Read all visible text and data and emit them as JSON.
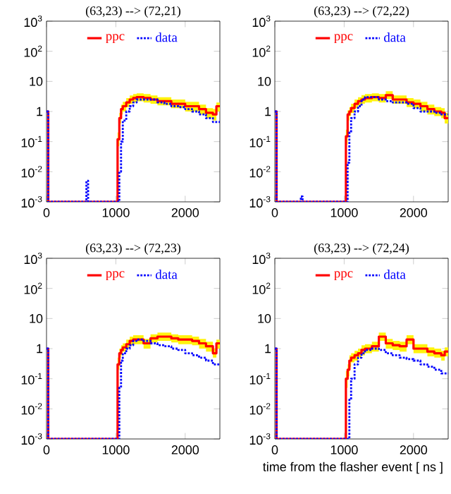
{
  "chart_data": [
    {
      "type": "step",
      "title": "(63,23) --> (72,21)",
      "log": true,
      "legend": "top",
      "xlim": [
        0,
        2500
      ],
      "xticks": [
        0,
        1000,
        2000
      ],
      "ylim": [
        0.001,
        1000
      ],
      "yticks": [
        {
          "value": 1000,
          "label": "10$^{3}$"
        },
        {
          "value": 100,
          "label": "10$^{2}$"
        },
        {
          "value": 10,
          "label": "10"
        },
        {
          "value": 1,
          "label": "1"
        },
        {
          "value": 0.1,
          "label": "10$^{-1}$"
        },
        {
          "value": 0.01,
          "label": "10$^{-2}$"
        },
        {
          "value": 0.001,
          "label": "10$^{-3}$"
        }
      ],
      "series": [
        {
          "name": "ppc",
          "color": "#ff0000",
          "line_style": "solid",
          "x": [
            0,
            25,
            1000,
            1025,
            1050,
            1075,
            1100,
            1150,
            1200,
            1250,
            1300,
            1400,
            1500,
            1600,
            1700,
            1800,
            1900,
            2000,
            2100,
            2200,
            2300,
            2400,
            2450,
            2500
          ],
          "values": [
            1,
            0.001,
            0.001,
            0.12,
            0.6,
            1.2,
            1.5,
            2,
            2.5,
            2.8,
            3,
            2.8,
            2.5,
            2.2,
            2.2,
            1.8,
            1.8,
            1.5,
            1.5,
            1.2,
            0.9,
            0.8,
            1.5,
            1.5
          ],
          "upper": [
            null,
            null,
            null,
            0.2,
            0.9,
            1.7,
            2.1,
            2.8,
            3.4,
            3.8,
            4,
            3.8,
            3.4,
            3,
            3,
            2.5,
            2.5,
            2.1,
            2.1,
            1.7,
            1.3,
            1.2,
            2,
            2
          ],
          "lower": [
            null,
            null,
            null,
            0.07,
            0.4,
            0.8,
            1,
            1.4,
            1.8,
            2,
            2.2,
            2,
            1.8,
            1.6,
            1.6,
            1.3,
            1.3,
            1,
            1,
            0.8,
            0.6,
            0.5,
            1,
            1
          ]
        },
        {
          "name": "data",
          "color": "#0000ff",
          "line_style": "dotted",
          "x": [
            0,
            25,
            550,
            575,
            600,
            1025,
            1050,
            1075,
            1100,
            1150,
            1200,
            1250,
            1300,
            1400,
            1500,
            1600,
            1700,
            1800,
            1900,
            2000,
            2100,
            2200,
            2300,
            2400,
            2500
          ],
          "values": [
            1,
            0.001,
            0.001,
            0.005,
            0.001,
            0.001,
            0.01,
            0.1,
            0.5,
            1,
            1.5,
            2,
            2.5,
            2.5,
            2.5,
            2,
            1.8,
            1.5,
            1.4,
            1.2,
            1,
            0.8,
            0.6,
            0.45,
            0.5
          ]
        }
      ]
    },
    {
      "type": "step",
      "title": "(63,23) --> (72,22)",
      "log": true,
      "legend": "top",
      "xlim": [
        0,
        2500
      ],
      "xticks": [
        0,
        1000,
        2000
      ],
      "ylim": [
        0.001,
        1000
      ],
      "yticks": [
        {
          "value": 1000,
          "label": "10$^{3}$"
        },
        {
          "value": 100,
          "label": "10$^{2}$"
        },
        {
          "value": 10,
          "label": "10"
        },
        {
          "value": 1,
          "label": "1"
        },
        {
          "value": 0.1,
          "label": "10$^{-1}$"
        },
        {
          "value": 0.01,
          "label": "10$^{-2}$"
        },
        {
          "value": 0.001,
          "label": "10$^{-3}$"
        }
      ],
      "series": [
        {
          "name": "ppc",
          "color": "#ff0000",
          "line_style": "solid",
          "x": [
            0,
            25,
            1000,
            1025,
            1050,
            1075,
            1100,
            1150,
            1200,
            1250,
            1300,
            1400,
            1500,
            1600,
            1700,
            1800,
            1900,
            2000,
            2100,
            2200,
            2300,
            2400,
            2450,
            2500
          ],
          "values": [
            1,
            0.001,
            0.001,
            0.15,
            0.8,
            1,
            1.3,
            1.8,
            2.2,
            2.5,
            2.8,
            3,
            2.8,
            3.5,
            2.5,
            2.5,
            2,
            1.8,
            1.5,
            1.2,
            1,
            0.9,
            0.6,
            0.6
          ],
          "upper": [
            null,
            null,
            null,
            0.25,
            1.1,
            1.4,
            1.8,
            2.5,
            3,
            3.5,
            3.8,
            4,
            3.8,
            4.7,
            3.4,
            3.4,
            2.8,
            2.5,
            2.1,
            1.7,
            1.4,
            1.3,
            0.9,
            0.9
          ],
          "lower": [
            null,
            null,
            null,
            0.08,
            0.5,
            0.7,
            0.9,
            1.3,
            1.6,
            1.8,
            2,
            2.2,
            2,
            2.6,
            1.8,
            1.8,
            1.4,
            1.3,
            1,
            0.8,
            0.7,
            0.6,
            0.4,
            0.4
          ]
        },
        {
          "name": "data",
          "color": "#0000ff",
          "line_style": "dotted",
          "x": [
            0,
            25,
            350,
            375,
            400,
            1025,
            1050,
            1075,
            1100,
            1150,
            1200,
            1250,
            1300,
            1400,
            1500,
            1600,
            1700,
            1800,
            1900,
            2000,
            2100,
            2200,
            2300,
            2400,
            2500
          ],
          "values": [
            1,
            0.001,
            0.001,
            0.0015,
            0.001,
            0.001,
            0.02,
            0.2,
            0.6,
            1,
            1.5,
            2.5,
            3,
            3,
            2.5,
            2.2,
            2,
            2,
            1.8,
            1.3,
            1,
            1,
            0.9,
            0.8,
            0.8
          ]
        }
      ]
    },
    {
      "type": "step",
      "title": "(63,23) --> (72,23)",
      "log": true,
      "legend": "top",
      "xlim": [
        0,
        2500
      ],
      "xticks": [
        0,
        1000,
        2000
      ],
      "ylim": [
        0.001,
        1000
      ],
      "yticks": [
        {
          "value": 1000,
          "label": "10$^{3}$"
        },
        {
          "value": 100,
          "label": "10$^{2}$"
        },
        {
          "value": 10,
          "label": "10"
        },
        {
          "value": 1,
          "label": "1"
        },
        {
          "value": 0.1,
          "label": "10$^{-1}$"
        },
        {
          "value": 0.01,
          "label": "10$^{-2}$"
        },
        {
          "value": 0.001,
          "label": "10$^{-3}$"
        }
      ],
      "series": [
        {
          "name": "ppc",
          "color": "#ff0000",
          "line_style": "solid",
          "x": [
            0,
            25,
            1000,
            1025,
            1050,
            1075,
            1100,
            1150,
            1200,
            1250,
            1300,
            1400,
            1500,
            1600,
            1700,
            1800,
            1900,
            2000,
            2100,
            2200,
            2300,
            2400,
            2450,
            2500
          ],
          "values": [
            1,
            0.001,
            0.001,
            0.3,
            0.7,
            0.9,
            1.1,
            1.4,
            1.8,
            2,
            2,
            1.5,
            2.2,
            2.5,
            2.5,
            2.2,
            2,
            2,
            1.8,
            1.5,
            1.2,
            0.7,
            1.5,
            1.5
          ],
          "upper": [
            null,
            null,
            null,
            0.5,
            1,
            1.3,
            1.5,
            2,
            2.5,
            2.8,
            2.8,
            2.1,
            3,
            3.4,
            3.4,
            3,
            2.8,
            2.8,
            2.5,
            2.1,
            1.7,
            1,
            2,
            2
          ],
          "lower": [
            null,
            null,
            null,
            0.2,
            0.5,
            0.6,
            0.8,
            1,
            1.3,
            1.4,
            1.4,
            1,
            1.6,
            1.8,
            1.8,
            1.6,
            1.4,
            1.4,
            1.3,
            1,
            0.8,
            0.5,
            1,
            1
          ]
        },
        {
          "name": "data",
          "color": "#0000ff",
          "line_style": "dotted",
          "x": [
            0,
            25,
            1025,
            1050,
            1075,
            1100,
            1150,
            1200,
            1250,
            1300,
            1400,
            1500,
            1600,
            1700,
            1800,
            1900,
            2000,
            2100,
            2200,
            2300,
            2400,
            2500
          ],
          "values": [
            1,
            0.001,
            0.001,
            0.05,
            0.4,
            0.7,
            1,
            1.3,
            1.8,
            2,
            1.8,
            1.5,
            1.3,
            1.2,
            1,
            0.9,
            0.7,
            0.6,
            0.5,
            0.4,
            0.3,
            0.3
          ]
        }
      ]
    },
    {
      "type": "step",
      "title": "(63,23) --> (72,24)",
      "xlabel": "time from the flasher event [ ns ]",
      "log": true,
      "legend": "top",
      "xlim": [
        0,
        2500
      ],
      "xticks": [
        0,
        1000,
        2000
      ],
      "ylim": [
        0.001,
        1000
      ],
      "yticks": [
        {
          "value": 1000,
          "label": "10$^{3}$"
        },
        {
          "value": 100,
          "label": "10$^{2}$"
        },
        {
          "value": 10,
          "label": "10"
        },
        {
          "value": 1,
          "label": "1"
        },
        {
          "value": 0.1,
          "label": "10$^{-1}$"
        },
        {
          "value": 0.01,
          "label": "10$^{-2}$"
        },
        {
          "value": 0.001,
          "label": "10$^{-3}$"
        }
      ],
      "series": [
        {
          "name": "ppc",
          "color": "#ff0000",
          "line_style": "solid",
          "x": [
            0,
            25,
            1000,
            1025,
            1050,
            1075,
            1100,
            1150,
            1200,
            1250,
            1300,
            1400,
            1500,
            1600,
            1700,
            1800,
            1900,
            2000,
            2100,
            2200,
            2300,
            2400,
            2450,
            2500
          ],
          "values": [
            1,
            0.001,
            0.001,
            0.1,
            0.2,
            0.4,
            0.5,
            0.6,
            0.7,
            0.9,
            1,
            1.2,
            2.5,
            1.5,
            1.3,
            1.2,
            2,
            1,
            1,
            0.8,
            0.7,
            0.6,
            0.8,
            0.8
          ],
          "upper": [
            null,
            null,
            null,
            0.18,
            0.3,
            0.6,
            0.7,
            0.85,
            1,
            1.3,
            1.4,
            1.7,
            3.4,
            2.1,
            1.8,
            1.7,
            2.8,
            1.4,
            1.4,
            1.1,
            1,
            0.85,
            1.1,
            1.1
          ],
          "lower": [
            null,
            null,
            null,
            0.05,
            0.12,
            0.25,
            0.35,
            0.4,
            0.5,
            0.6,
            0.7,
            0.8,
            1.8,
            1,
            0.9,
            0.8,
            1.4,
            0.7,
            0.7,
            0.55,
            0.5,
            0.4,
            0.55,
            0.55
          ]
        },
        {
          "name": "data",
          "color": "#0000ff",
          "line_style": "dotted",
          "x": [
            0,
            25,
            1025,
            1050,
            1075,
            1100,
            1150,
            1200,
            1250,
            1300,
            1400,
            1500,
            1600,
            1700,
            1800,
            1900,
            2000,
            2100,
            2200,
            2300,
            2400,
            2500
          ],
          "values": [
            1,
            0.001,
            0.001,
            0.001,
            0.02,
            0.1,
            0.3,
            0.5,
            0.7,
            0.9,
            1,
            0.9,
            0.7,
            0.6,
            0.5,
            0.45,
            0.4,
            0.3,
            0.25,
            0.2,
            0.15,
            0.15
          ]
        }
      ]
    }
  ]
}
